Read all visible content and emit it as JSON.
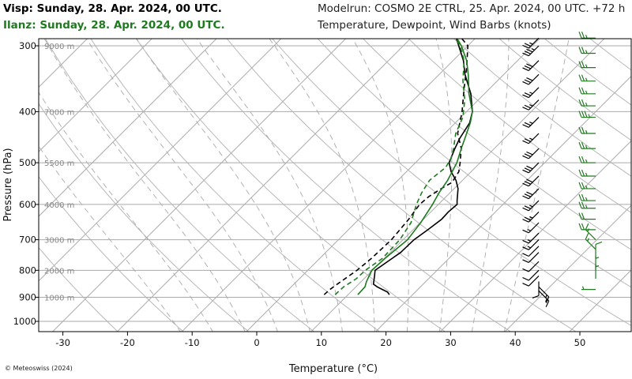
{
  "header": {
    "visp": "Visp: Sunday, 28. Apr. 2024, 00 UTC.",
    "ilanz": "Ilanz: Sunday, 28. Apr. 2024, 00 UTC.",
    "modelrun": "Modelrun: COSMO 2E CTRL, 25. Apr. 2024, 00 UTC. +72 h",
    "subtitle": "Temperature, Dewpoint, Wind Barbs (knots)"
  },
  "copyright": "© Meteoswiss (2024)",
  "colors": {
    "visp": "#000000",
    "ilanz": "#1f7a1f",
    "grid": "#999999"
  },
  "chart_data": {
    "type": "line",
    "subtype": "skew-T log-p diagram",
    "xlabel": "Temperature (°C)",
    "ylabel": "Pressure (hPa)",
    "x_ticks": [
      -30,
      -20,
      -10,
      0,
      10,
      20,
      30,
      40,
      50
    ],
    "y_ticks": [
      300,
      400,
      500,
      600,
      700,
      800,
      900,
      1000
    ],
    "altitude_labels": [
      {
        "p": 300,
        "label": "9000 m"
      },
      {
        "p": 400,
        "label": "7000 m"
      },
      {
        "p": 500,
        "label": "5500 m"
      },
      {
        "p": 600,
        "label": "4000 m"
      },
      {
        "p": 700,
        "label": "3000 m"
      },
      {
        "p": 800,
        "label": "2000 m"
      },
      {
        "p": 900,
        "label": "1000 m"
      }
    ],
    "xlim": [
      -34,
      54
    ],
    "ylim": [
      290,
      1050
    ],
    "grid": true,
    "series": [
      {
        "name": "Visp",
        "kind": "temperature",
        "color": "#000000",
        "dash": "solid",
        "points": [
          [
            890,
            16.4
          ],
          [
            880,
            15.7
          ],
          [
            870,
            14.5
          ],
          [
            860,
            13.3
          ],
          [
            850,
            12.3
          ],
          [
            820,
            11.2
          ],
          [
            800,
            10.4
          ],
          [
            760,
            11.2
          ],
          [
            740,
            11.6
          ],
          [
            700,
            11.7
          ],
          [
            670,
            12.3
          ],
          [
            640,
            12.8
          ],
          [
            620,
            12.7
          ],
          [
            600,
            12.9
          ],
          [
            590,
            12.3
          ],
          [
            560,
            10.6
          ],
          [
            540,
            9.0
          ],
          [
            520,
            6.9
          ],
          [
            500,
            5.2
          ],
          [
            470,
            3.9
          ],
          [
            450,
            3.1
          ],
          [
            420,
            2.2
          ],
          [
            400,
            0.9
          ],
          [
            370,
            -2.1
          ],
          [
            340,
            -6.0
          ],
          [
            320,
            -8.4
          ],
          [
            300,
            -11.4
          ],
          [
            290,
            -13.0
          ]
        ]
      },
      {
        "name": "Visp",
        "kind": "dewpoint",
        "color": "#000000",
        "dash": "6,4",
        "points": [
          [
            890,
            6.3
          ],
          [
            870,
            6.4
          ],
          [
            850,
            6.7
          ],
          [
            800,
            7.6
          ],
          [
            760,
            8.0
          ],
          [
            700,
            8.2
          ],
          [
            640,
            7.7
          ],
          [
            600,
            7.1
          ],
          [
            580,
            7.3
          ],
          [
            560,
            8.0
          ],
          [
            545,
            8.7
          ],
          [
            520,
            8.1
          ],
          [
            500,
            6.9
          ],
          [
            470,
            4.9
          ],
          [
            440,
            2.0
          ],
          [
            400,
            -0.7
          ],
          [
            360,
            -4.1
          ],
          [
            330,
            -6.8
          ],
          [
            300,
            -10.0
          ],
          [
            290,
            -12.2
          ]
        ]
      },
      {
        "name": "Ilanz",
        "kind": "temperature",
        "color": "#1f7a1f",
        "dash": "solid",
        "points": [
          [
            890,
            11.5
          ],
          [
            860,
            11.4
          ],
          [
            840,
            10.8
          ],
          [
            800,
            9.9
          ],
          [
            760,
            10.1
          ],
          [
            700,
            10.7
          ],
          [
            650,
            10.1
          ],
          [
            600,
            9.1
          ],
          [
            570,
            8.3
          ],
          [
            540,
            7.7
          ],
          [
            500,
            6.4
          ],
          [
            470,
            4.9
          ],
          [
            450,
            3.9
          ],
          [
            420,
            2.3
          ],
          [
            400,
            0.9
          ],
          [
            370,
            -2.4
          ],
          [
            340,
            -5.5
          ],
          [
            320,
            -7.9
          ],
          [
            300,
            -11.0
          ],
          [
            290,
            -12.9
          ]
        ]
      },
      {
        "name": "Ilanz",
        "kind": "dewpoint",
        "color": "#1f7a1f",
        "dash": "6,4",
        "points": [
          [
            890,
            8.0
          ],
          [
            860,
            8.1
          ],
          [
            830,
            8.8
          ],
          [
            800,
            8.9
          ],
          [
            760,
            9.7
          ],
          [
            700,
            9.5
          ],
          [
            650,
            8.6
          ],
          [
            600,
            6.6
          ],
          [
            570,
            5.6
          ],
          [
            540,
            4.9
          ],
          [
            510,
            5.4
          ],
          [
            490,
            4.8
          ],
          [
            470,
            3.7
          ],
          [
            440,
            1.7
          ],
          [
            410,
            0.3
          ],
          [
            380,
            -2.1
          ],
          [
            350,
            -5.3
          ],
          [
            320,
            -8.3
          ],
          [
            300,
            -11.2
          ],
          [
            290,
            -13.1
          ]
        ]
      }
    ],
    "wind_barbs": {
      "Visp": {
        "color": "#000000",
        "position": "right-inner",
        "levels": [
          [
            875,
            "SE",
            15
          ],
          [
            860,
            "SE",
            15
          ],
          [
            840,
            "S",
            10
          ],
          [
            820,
            "SW",
            10
          ],
          [
            800,
            "SW",
            10
          ],
          [
            770,
            "SW",
            10
          ],
          [
            740,
            "SW",
            10
          ],
          [
            720,
            "SW",
            10
          ],
          [
            700,
            "SW",
            15
          ],
          [
            680,
            "SW",
            15
          ],
          [
            650,
            "SW",
            15
          ],
          [
            620,
            "SW",
            25
          ],
          [
            590,
            "SW",
            25
          ],
          [
            560,
            "SW",
            30
          ],
          [
            530,
            "SW",
            30
          ],
          [
            500,
            "SW",
            30
          ],
          [
            470,
            "SW",
            30
          ],
          [
            440,
            "SW",
            25
          ],
          [
            410,
            "SW",
            25
          ],
          [
            380,
            "SW",
            25
          ],
          [
            360,
            "SW",
            25
          ],
          [
            340,
            "SW",
            30
          ],
          [
            320,
            "SW",
            30
          ],
          [
            300,
            "SW",
            35
          ],
          [
            290,
            "SW",
            25
          ]
        ]
      },
      "Ilanz": {
        "color": "#1f7a1f",
        "position": "right-outer",
        "levels": [
          [
            870,
            "W",
            5
          ],
          [
            830,
            "N",
            5
          ],
          [
            800,
            "N",
            5
          ],
          [
            760,
            "N",
            10
          ],
          [
            730,
            "NW",
            15
          ],
          [
            700,
            "NW",
            15
          ],
          [
            670,
            "W",
            20
          ],
          [
            640,
            "W",
            20
          ],
          [
            610,
            "W",
            25
          ],
          [
            590,
            "W",
            25
          ],
          [
            560,
            "W",
            25
          ],
          [
            530,
            "W",
            25
          ],
          [
            500,
            "W",
            25
          ],
          [
            470,
            "W",
            25
          ],
          [
            440,
            "W",
            25
          ],
          [
            410,
            "W",
            35
          ],
          [
            390,
            "W",
            25
          ],
          [
            370,
            "W",
            25
          ],
          [
            350,
            "W",
            25
          ],
          [
            330,
            "W",
            25
          ],
          [
            310,
            "W",
            25
          ],
          [
            290,
            "W",
            25
          ]
        ]
      }
    }
  }
}
